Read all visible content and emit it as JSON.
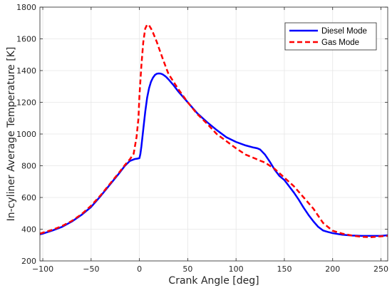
{
  "chart_data": {
    "type": "line",
    "title": "",
    "xlabel": "Crank Angle [deg]",
    "ylabel": "In-cyliner Average Temperature [K]",
    "xlim": [
      -103,
      257
    ],
    "ylim": [
      200,
      1800
    ],
    "xticks": [
      -100,
      -50,
      0,
      50,
      100,
      150,
      200,
      250
    ],
    "xtick_labels": [
      "−100",
      "−50",
      "0",
      "50",
      "100",
      "150",
      "200",
      "250"
    ],
    "yticks": [
      200,
      400,
      600,
      800,
      1000,
      1200,
      1400,
      1600,
      1800
    ],
    "grid": true,
    "legend_position": "top-right",
    "series": [
      {
        "name": "Diesel Mode",
        "color": "#0000ff",
        "style": "solid",
        "x": [
          -103,
          -100,
          -90,
          -80,
          -70,
          -60,
          -50,
          -40,
          -30,
          -20,
          -15,
          -10,
          -5,
          -2,
          0,
          1,
          2,
          4,
          6,
          8,
          10,
          12,
          14,
          16,
          18,
          20,
          22,
          24,
          26,
          28,
          30,
          35,
          40,
          50,
          60,
          70,
          80,
          90,
          100,
          110,
          118,
          122,
          125,
          130,
          135,
          140,
          145,
          150,
          155,
          160,
          165,
          170,
          175,
          180,
          185,
          190,
          195,
          200,
          210,
          220,
          230,
          240,
          250,
          257
        ],
        "y": [
          368,
          372,
          392,
          415,
          448,
          490,
          540,
          610,
          685,
          760,
          800,
          830,
          842,
          845,
          848,
          875,
          920,
          1030,
          1140,
          1230,
          1290,
          1330,
          1355,
          1372,
          1380,
          1382,
          1381,
          1376,
          1368,
          1358,
          1345,
          1310,
          1270,
          1200,
          1130,
          1075,
          1025,
          980,
          950,
          928,
          915,
          910,
          902,
          870,
          825,
          775,
          735,
          710,
          670,
          630,
          585,
          535,
          490,
          450,
          415,
          392,
          383,
          375,
          365,
          360,
          358,
          358,
          358,
          362
        ]
      },
      {
        "name": "Gas Mode",
        "color": "#ff0000",
        "style": "dashed",
        "x": [
          -103,
          -100,
          -90,
          -80,
          -70,
          -60,
          -50,
          -40,
          -30,
          -20,
          -15,
          -10,
          -6,
          -3,
          -1,
          0,
          2,
          4,
          6,
          8,
          10,
          12,
          14,
          16,
          18,
          20,
          25,
          30,
          40,
          50,
          60,
          70,
          80,
          90,
          100,
          110,
          120,
          125,
          130,
          140,
          150,
          160,
          170,
          180,
          190,
          200,
          210,
          220,
          230,
          240,
          250,
          257
        ],
        "y": [
          372,
          378,
          396,
          420,
          452,
          494,
          548,
          615,
          690,
          765,
          805,
          840,
          875,
          980,
          1100,
          1240,
          1430,
          1580,
          1665,
          1690,
          1685,
          1665,
          1640,
          1610,
          1580,
          1545,
          1460,
          1380,
          1285,
          1200,
          1125,
          1065,
          1000,
          955,
          910,
          870,
          845,
          832,
          820,
          780,
          725,
          670,
          600,
          530,
          440,
          390,
          372,
          360,
          352,
          350,
          355,
          358
        ]
      }
    ]
  }
}
